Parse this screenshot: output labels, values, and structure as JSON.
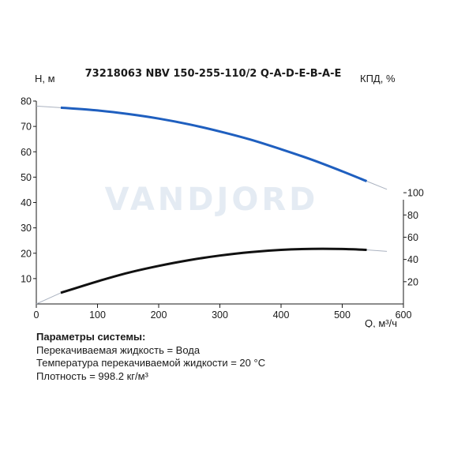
{
  "chart_data": {
    "type": "line",
    "title": "73218063 NBV 150-255-110/2 Q-A-D-E-B-A-E",
    "xlabel": "Q, м³/ч",
    "ylabel_left": "H, м",
    "ylabel_right": "КПД, %",
    "xlim": [
      0,
      600
    ],
    "ylim_left": [
      0,
      80
    ],
    "ylim_right": [
      0,
      110
    ],
    "x_ticks": [
      0,
      100,
      200,
      300,
      400,
      500,
      600
    ],
    "y_left_ticks": [
      10,
      20,
      30,
      40,
      50,
      60,
      70,
      80
    ],
    "y_right_ticks": [
      20,
      40,
      60,
      80,
      100
    ],
    "watermark": "VANDJORD",
    "grid": false,
    "series": [
      {
        "axis": "left",
        "color": "#1f5fbf",
        "points": [
          [
            40,
            77.4
          ],
          [
            100,
            76.3
          ],
          [
            150,
            74.9
          ],
          [
            200,
            73.1
          ],
          [
            250,
            70.8
          ],
          [
            300,
            68.0
          ],
          [
            350,
            64.8
          ],
          [
            400,
            61.0
          ],
          [
            450,
            56.9
          ],
          [
            500,
            52.3
          ],
          [
            540,
            48.4
          ]
        ],
        "extension": [
          [
            0,
            78.0
          ],
          [
            40,
            77.4
          ],
          [
            540,
            48.4
          ],
          [
            573,
            45.2
          ]
        ]
      },
      {
        "axis": "right",
        "color": "#111111",
        "points": [
          [
            40,
            10.0
          ],
          [
            100,
            20.3
          ],
          [
            150,
            28.0
          ],
          [
            200,
            34.2
          ],
          [
            250,
            39.4
          ],
          [
            300,
            43.5
          ],
          [
            350,
            46.6
          ],
          [
            400,
            48.6
          ],
          [
            450,
            49.5
          ],
          [
            500,
            49.4
          ],
          [
            540,
            48.6
          ]
        ],
        "extension": [
          [
            0,
            0.0
          ],
          [
            40,
            10.0
          ],
          [
            540,
            48.6
          ],
          [
            573,
            47.3
          ]
        ]
      }
    ]
  },
  "params": {
    "title": "Параметры системы:",
    "lines": [
      "Перекачиваемая жидкость = Вода",
      "Температура перекачиваемой жидкости = 20 °C",
      "Плотность = 998.2 кг/м³"
    ]
  }
}
